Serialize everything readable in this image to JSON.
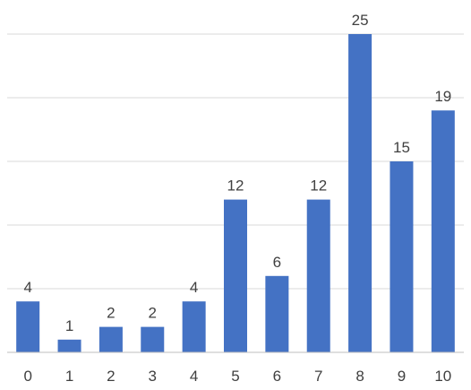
{
  "chart_data": {
    "type": "bar",
    "title": "",
    "xlabel": "",
    "ylabel": "",
    "categories": [
      "0",
      "1",
      "2",
      "3",
      "4",
      "5",
      "6",
      "7",
      "8",
      "9",
      "10"
    ],
    "values": [
      4,
      1,
      2,
      2,
      4,
      12,
      6,
      12,
      25,
      15,
      19
    ],
    "data_labels": [
      "4",
      "1",
      "2",
      "2",
      "4",
      "12",
      "6",
      "12",
      "25",
      "15",
      "19"
    ],
    "ylim": [
      0,
      25
    ],
    "y_axis_visible": false,
    "grid": true,
    "legend": "none",
    "colors": {
      "bar": "#4472C4",
      "grid": "#D9D9D9",
      "axis": "#BFBFBF",
      "text": "#404040"
    }
  }
}
